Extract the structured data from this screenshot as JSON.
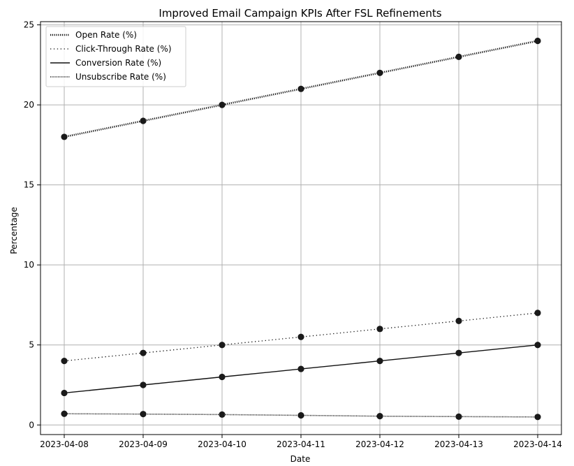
{
  "chart_data": {
    "type": "line",
    "title": "Improved Email Campaign KPIs After FSL Refinements",
    "xlabel": "Date",
    "ylabel": "Percentage",
    "x": [
      "2023-04-08",
      "2023-04-09",
      "2023-04-10",
      "2023-04-11",
      "2023-04-12",
      "2023-04-13",
      "2023-04-14"
    ],
    "ylim": [
      -0.6,
      25.2
    ],
    "yticks": [
      0,
      5,
      10,
      15,
      20,
      25
    ],
    "grid": true,
    "legend_position": "top-left",
    "series": [
      {
        "name": "Open Rate (%)",
        "style": "dotted-thick",
        "values": [
          18,
          19,
          20,
          21,
          22,
          23,
          24
        ]
      },
      {
        "name": "Click-Through Rate (%)",
        "style": "dotted",
        "values": [
          4,
          4.5,
          5,
          5.5,
          6,
          6.5,
          7
        ]
      },
      {
        "name": "Conversion Rate (%)",
        "style": "solid",
        "values": [
          2,
          2.5,
          3,
          3.5,
          4,
          4.5,
          5
        ]
      },
      {
        "name": "Unsubscribe Rate (%)",
        "style": "dotted-fine",
        "values": [
          0.7,
          0.68,
          0.65,
          0.6,
          0.55,
          0.52,
          0.5
        ]
      }
    ],
    "colors": {
      "line": "#111111",
      "marker": "#1a1a1a",
      "grid": "#b0b0b0"
    }
  }
}
